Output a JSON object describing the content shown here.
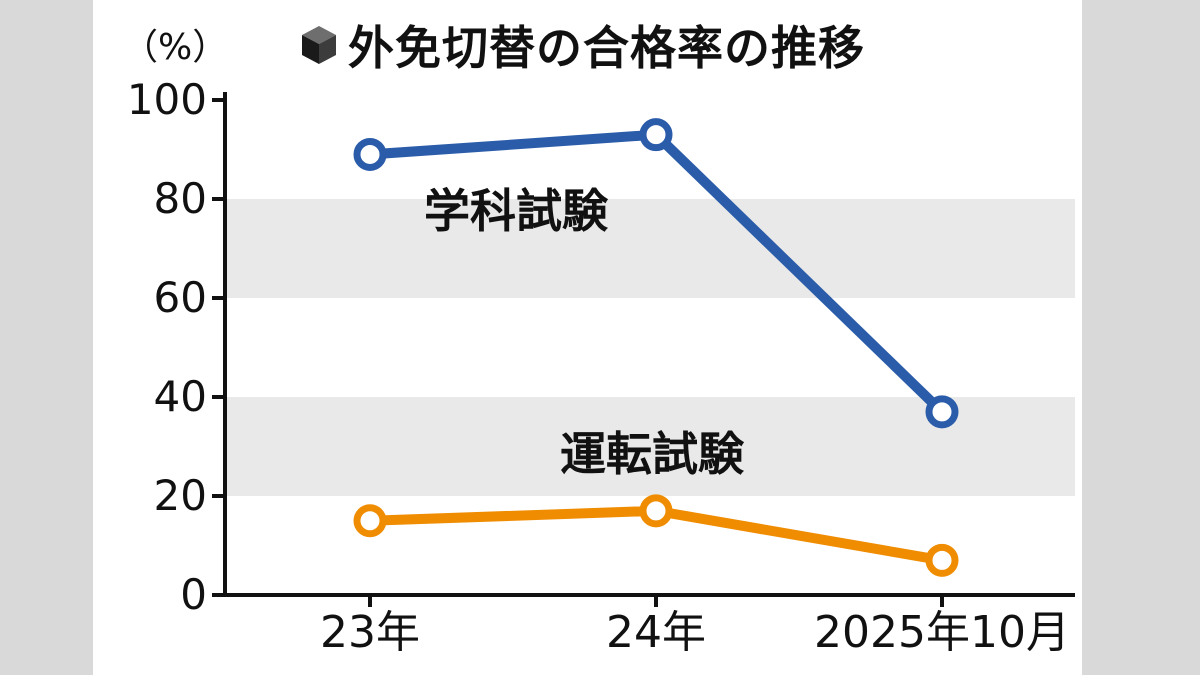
{
  "page": {
    "background_color": "#ffffff",
    "letterbox_color": "#d9d9d9"
  },
  "header": {
    "title": "外免切替の合格率の推移",
    "title_icon": "cube-icon",
    "unit_label": "（%）"
  },
  "chart_data": {
    "type": "line",
    "title": "外免切替の合格率の推移",
    "categories": [
      "23年",
      "24年",
      "2025年10月"
    ],
    "series": [
      {
        "name": "学科試験",
        "values": [
          89,
          93,
          37
        ],
        "color": "#2a5caa"
      },
      {
        "name": "運転試験",
        "values": [
          15,
          17,
          7
        ],
        "color": "#f08c00"
      }
    ],
    "ylabel": "（%）",
    "xlabel": "",
    "ylim": [
      0,
      100
    ],
    "yticks": [
      0,
      20,
      40,
      60,
      80,
      100
    ],
    "shaded_bands": [
      [
        20,
        40
      ],
      [
        60,
        80
      ]
    ],
    "band_color": "#e9e9e9",
    "axis_color": "#111111",
    "marker": "open-circle",
    "grid": "off",
    "legend_position": "inline-labels"
  }
}
